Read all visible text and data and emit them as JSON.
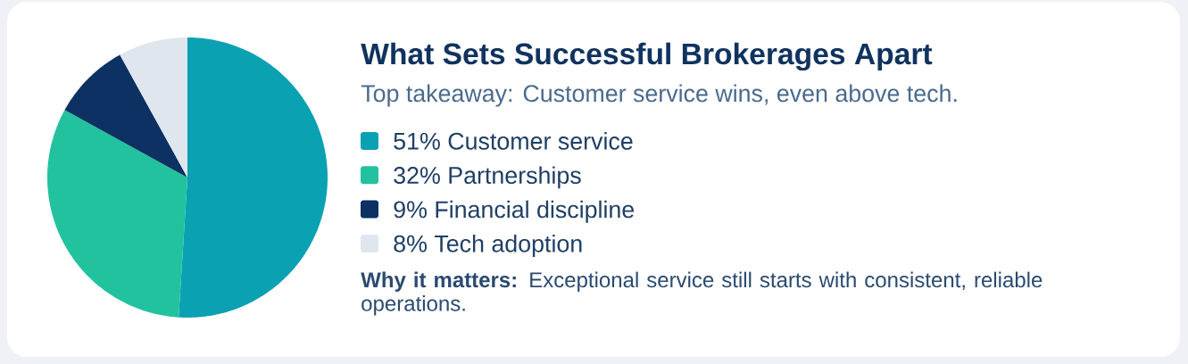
{
  "chart_data": {
    "type": "pie",
    "title": "What Sets Successful Brokerages Apart",
    "subtitle": "Top takeaway: Customer service wins, even above tech.",
    "categories": [
      "51% Customer service",
      "32% Partnerships",
      "9% Financial discipline",
      "8% Tech adoption"
    ],
    "values": [
      51,
      32,
      9,
      8
    ],
    "colors": [
      "#0aa1b2",
      "#22c29f",
      "#0c3162",
      "#e0e6ee"
    ],
    "legend": "right",
    "annotations": [
      "**Why it matters:** Exceptional service still starts with consistent, reliable operations."
    ]
  }
}
